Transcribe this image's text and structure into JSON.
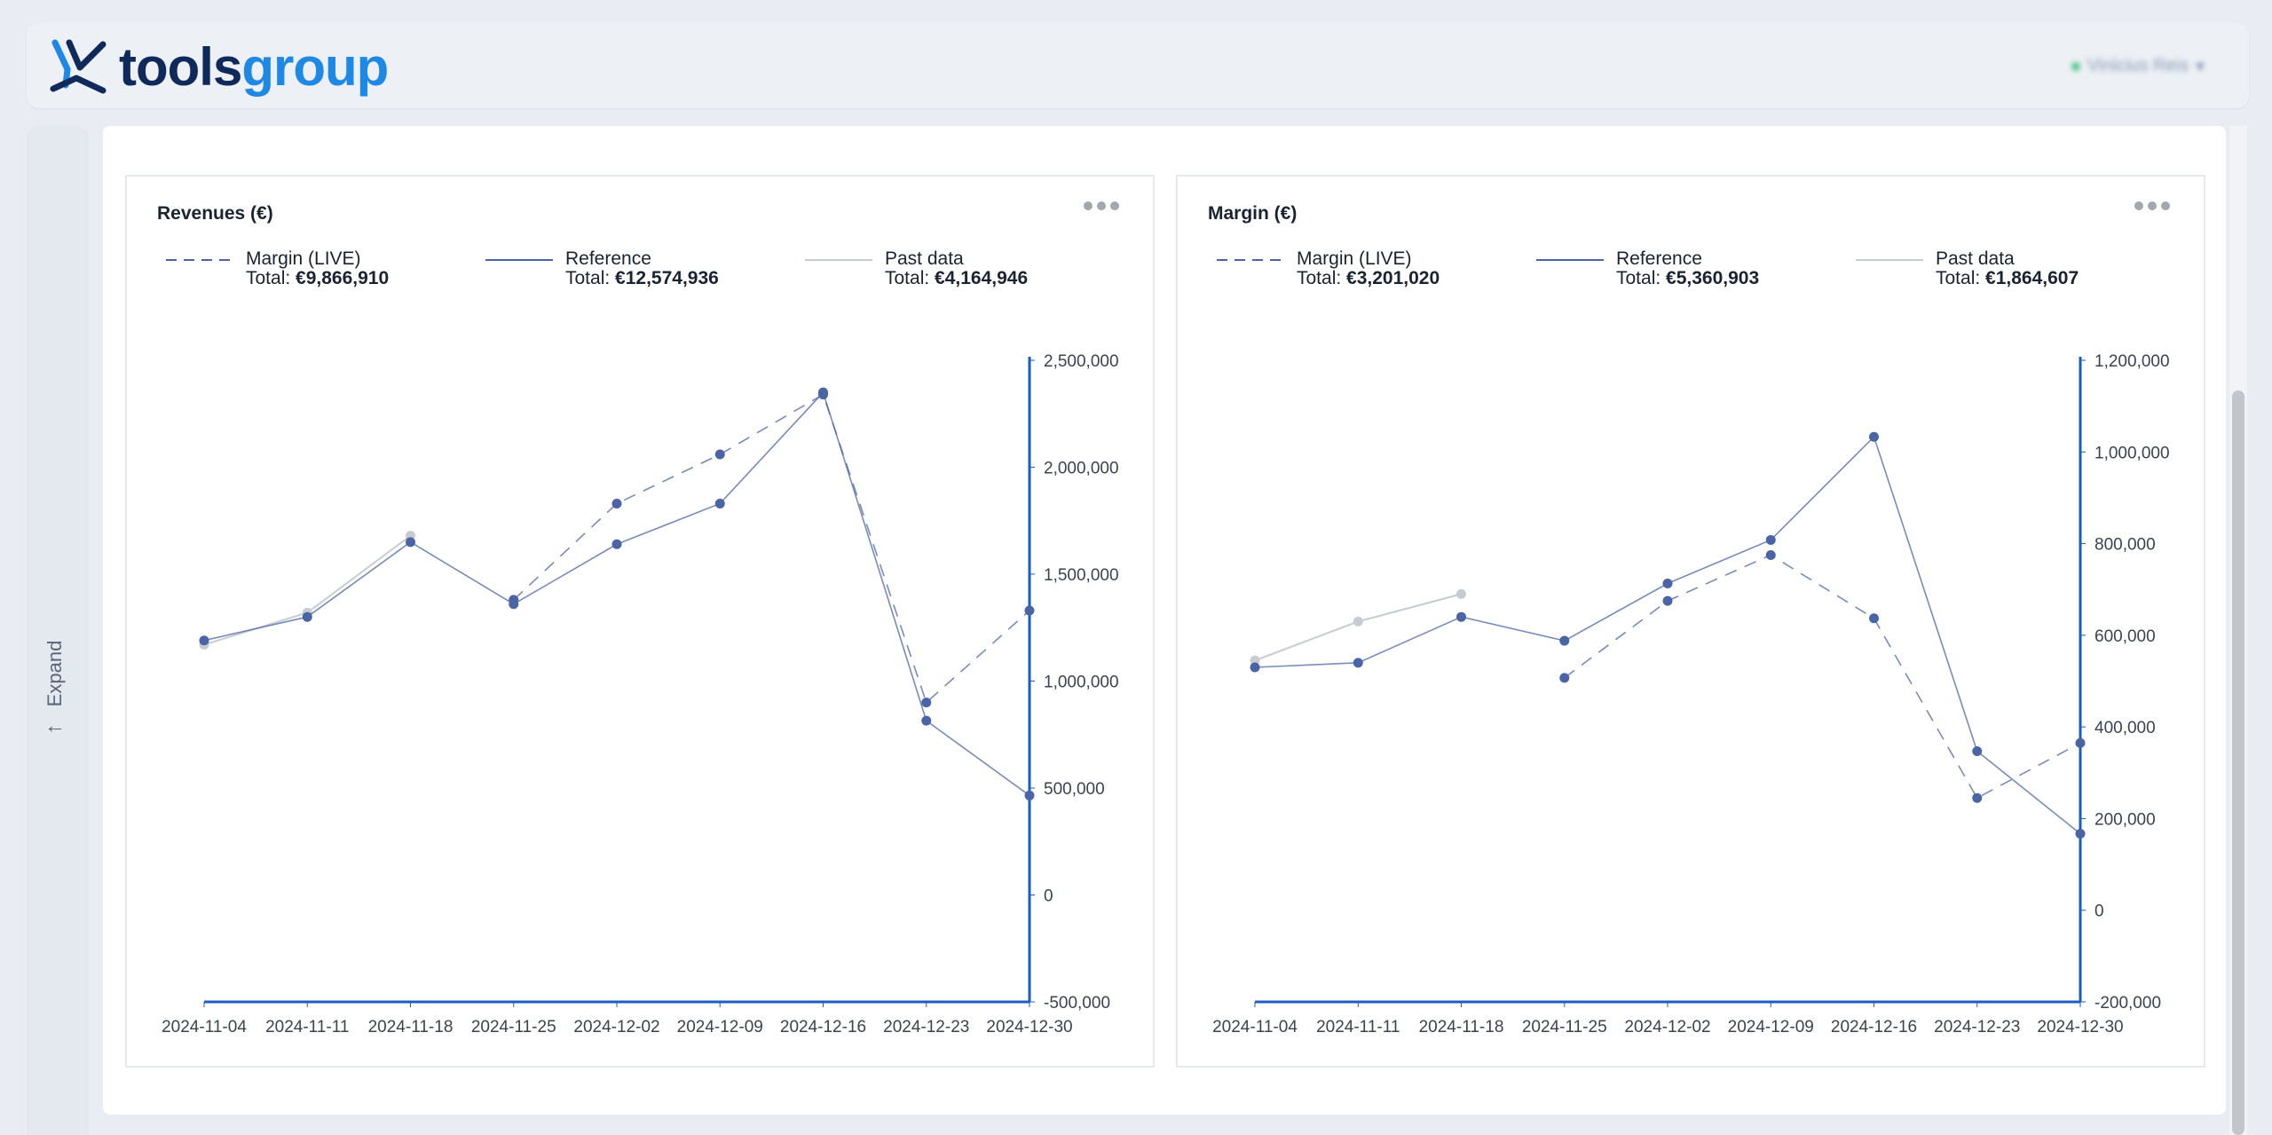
{
  "brand": {
    "name_part1": "tools",
    "name_part2": "group",
    "colors": {
      "dark": "#0f2a5a",
      "accent": "#1e88e5"
    }
  },
  "user": {
    "name": "Vinicius Reis"
  },
  "sidebar": {
    "expand_label": "Expand",
    "expand_icon": "arrow-right-icon"
  },
  "legend": {
    "total_label": "Total:",
    "series_names": [
      "Margin (LIVE)",
      "Reference",
      "Past data"
    ]
  },
  "colors": {
    "series": "#4a64a5",
    "past": "#c7cbd2",
    "axis": "#1a5fbf"
  },
  "chart_data": [
    {
      "type": "line",
      "title": "Revenues (€)",
      "x": [
        "2024-11-04",
        "2024-11-11",
        "2024-11-18",
        "2024-11-25",
        "2024-12-02",
        "2024-12-09",
        "2024-12-16",
        "2024-12-23",
        "2024-12-30"
      ],
      "ylim": [
        -500000,
        2500000
      ],
      "yticks": [
        "2,500,000",
        "2,000,000",
        "1,500,000",
        "1,000,000",
        "500,000",
        "0",
        "-500,000"
      ],
      "yaxis_side": "right",
      "legend_totals": [
        "€9,866,910",
        "€12,574,936",
        "€4,164,946"
      ],
      "series": [
        {
          "name": "Margin (LIVE)",
          "style": "dashed",
          "values": [
            null,
            null,
            null,
            1380000,
            1830000,
            2060000,
            2340000,
            900000,
            1330000
          ]
        },
        {
          "name": "Reference",
          "style": "solid",
          "values": [
            1190000,
            1300000,
            1650000,
            1360000,
            1640000,
            1830000,
            2350000,
            815000,
            465000
          ]
        },
        {
          "name": "Past data",
          "style": "solid-light",
          "values": [
            1170000,
            1320000,
            1680000,
            null,
            null,
            null,
            null,
            null,
            null
          ]
        }
      ]
    },
    {
      "type": "line",
      "title": "Margin (€)",
      "x": [
        "2024-11-04",
        "2024-11-11",
        "2024-11-18",
        "2024-11-25",
        "2024-12-02",
        "2024-12-09",
        "2024-12-16",
        "2024-12-23",
        "2024-12-30"
      ],
      "ylim": [
        -200000,
        1200000
      ],
      "yticks": [
        "1,200,000",
        "1,000,000",
        "800,000",
        "600,000",
        "400,000",
        "200,000",
        "0",
        "-200,000"
      ],
      "yaxis_side": "right",
      "legend_totals": [
        "€3,201,020",
        "€5,360,903",
        "€1,864,607"
      ],
      "series": [
        {
          "name": "Margin (LIVE)",
          "style": "dashed",
          "values": [
            null,
            null,
            null,
            507000,
            675000,
            775000,
            637000,
            245000,
            365000
          ]
        },
        {
          "name": "Reference",
          "style": "solid",
          "values": [
            530000,
            540000,
            640000,
            588000,
            713000,
            808000,
            1033000,
            347000,
            167000
          ]
        },
        {
          "name": "Past data",
          "style": "solid-light",
          "values": [
            545000,
            630000,
            690000,
            null,
            null,
            null,
            null,
            null,
            null
          ]
        }
      ]
    }
  ]
}
